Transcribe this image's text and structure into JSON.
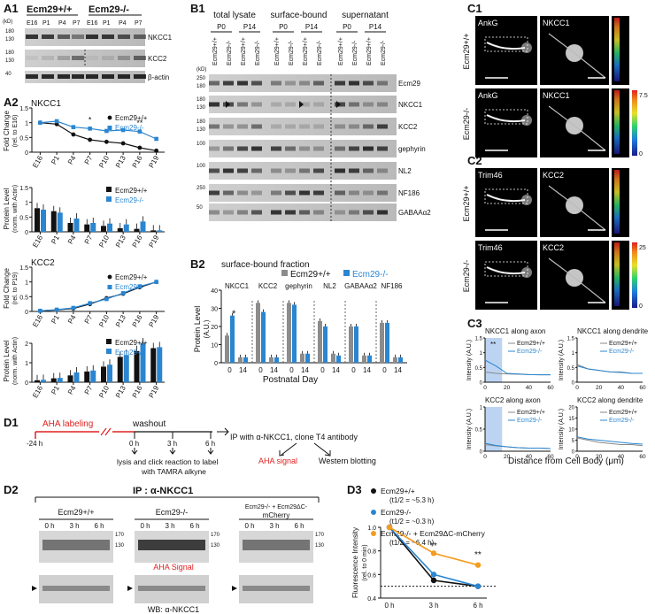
{
  "panel_labels": {
    "a1": "A1",
    "a2": "A2",
    "b1": "B1",
    "b2": "B2",
    "c1": "C1",
    "c2": "C2",
    "c3": "C3",
    "d1": "D1",
    "d2": "D2",
    "d3": "D3"
  },
  "a1": {
    "genotype_wt": "Ecm29+/+",
    "genotype_ko": "Ecm29-/-",
    "lanes": [
      "E16",
      "P1",
      "P4",
      "P7",
      "E16",
      "P1",
      "P4",
      "P7"
    ],
    "kd_label": "(kD)",
    "rows": [
      {
        "label": "NKCC1",
        "markers": [
          "180",
          "130"
        ]
      },
      {
        "label": "KCC2",
        "markers": [
          "180",
          "130"
        ]
      },
      {
        "label": "β-actin",
        "markers": [
          "40"
        ]
      }
    ]
  },
  "a2": {
    "nkcc1_title": "NKCC1",
    "kcc2_title": "KCC2",
    "xticks": [
      "E16",
      "P1",
      "P4",
      "P7",
      "P10",
      "P13",
      "P16",
      "P19"
    ],
    "fold_label": "Fold Change",
    "fold_sub_e16": "(rel. to E16)",
    "fold_sub_p19": "(rel. to P19)",
    "protein_label": "Protein Level",
    "protein_sub": "(norm. with Actin)",
    "legend_wt": "Ecm29+/+",
    "legend_ko": "Ecm29-/-",
    "star_single": "*",
    "star_double": "**"
  },
  "b1": {
    "groups": [
      "total lysate",
      "surface-bound",
      "supernatant"
    ],
    "ages": [
      "P0",
      "P14",
      "P0",
      "P14",
      "P0",
      "P14"
    ],
    "lane_labels": [
      "Ecm29+/+",
      "Ecm29-/-",
      "Ecm29+/+",
      "Ecm29-/-",
      "Ecm29+/+",
      "Ecm29-/-",
      "Ecm29+/+",
      "Ecm29-/-",
      "Ecm29+/+",
      "Ecm29-/-",
      "Ecm29+/+",
      "Ecm29-/-"
    ],
    "kd_label": "(kD)",
    "rows": [
      {
        "label": "Ecm29",
        "markers": [
          "250",
          "180"
        ]
      },
      {
        "label": "NKCC1",
        "markers": [
          "180",
          "130"
        ]
      },
      {
        "label": "KCC2",
        "markers": [
          "180",
          "130"
        ]
      },
      {
        "label": "gephyrin",
        "markers": [
          "100"
        ]
      },
      {
        "label": "NL2",
        "markers": [
          "100"
        ]
      },
      {
        "label": "NF186",
        "markers": [
          "250"
        ]
      },
      {
        "label": "GABAAα2",
        "markers": [
          "50"
        ]
      }
    ]
  },
  "b2": {
    "title": "surface-bound fraction",
    "legend_wt": "Ecm29+/+",
    "legend_ko": "Ecm29-/-",
    "color_wt": "#8c8c8c",
    "color_ko": "#2a86d1",
    "ylabel": "Protein Level",
    "ylabel_sub": "(A.U.)",
    "xlabel": "Postnatal Day",
    "star": "*"
  },
  "chart_data": [
    {
      "id": "A2-NKCC1-fold",
      "type": "line",
      "x": [
        "E16",
        "P1",
        "P4",
        "P7",
        "P10",
        "P13",
        "P16",
        "P19"
      ],
      "series": [
        {
          "name": "Ecm29+/+",
          "values": [
            1.0,
            0.95,
            0.6,
            0.42,
            0.35,
            0.3,
            0.15,
            0.05
          ]
        },
        {
          "name": "Ecm29-/-",
          "values": [
            1.0,
            1.05,
            0.85,
            0.8,
            0.72,
            0.75,
            0.7,
            0.45
          ]
        }
      ],
      "ylabel": "Fold Change (rel. to E16)",
      "ylim": [
        0,
        1.5
      ],
      "yticks": [
        0,
        0.5,
        1.0,
        1.5
      ]
    },
    {
      "id": "A2-NKCC1-protein",
      "type": "bar",
      "categories": [
        "E16",
        "P1",
        "P4",
        "P7",
        "P10",
        "P13",
        "P16",
        "P19"
      ],
      "series": [
        {
          "name": "Ecm29+/+",
          "values": [
            0.8,
            0.7,
            0.3,
            0.25,
            0.2,
            0.12,
            0.1,
            0.05
          ]
        },
        {
          "name": "Ecm29-/-",
          "values": [
            0.75,
            0.65,
            0.45,
            0.3,
            0.28,
            0.25,
            0.35,
            0.05
          ]
        }
      ],
      "ylabel": "Protein Level (norm. with Actin)",
      "ylim": [
        0,
        1.5
      ],
      "yticks": [
        0,
        0.5,
        1.0,
        1.5
      ]
    },
    {
      "id": "A2-KCC2-fold",
      "type": "line",
      "x": [
        "E16",
        "P1",
        "P4",
        "P7",
        "P10",
        "P13",
        "P16",
        "P19"
      ],
      "series": [
        {
          "name": "Ecm29+/+",
          "values": [
            0.02,
            0.05,
            0.1,
            0.25,
            0.45,
            0.6,
            0.82,
            1.0
          ]
        },
        {
          "name": "Ecm29-/-",
          "values": [
            0.02,
            0.06,
            0.12,
            0.28,
            0.42,
            0.62,
            0.85,
            1.0
          ]
        }
      ],
      "ylabel": "Fold Change (rel. to P19)",
      "ylim": [
        0,
        1.5
      ],
      "yticks": [
        0,
        0.5,
        1.0,
        1.5
      ]
    },
    {
      "id": "A2-KCC2-protein",
      "type": "bar",
      "categories": [
        "E16",
        "P1",
        "P4",
        "P7",
        "P10",
        "P13",
        "P16",
        "P19"
      ],
      "series": [
        {
          "name": "Ecm29+/+",
          "values": [
            0.1,
            0.2,
            0.35,
            0.55,
            0.8,
            1.3,
            1.6,
            1.75
          ]
        },
        {
          "name": "Ecm29-/-",
          "values": [
            0.12,
            0.22,
            0.5,
            0.6,
            0.9,
            1.4,
            2.0,
            1.8
          ]
        }
      ],
      "ylabel": "Protein Level (norm. with Actin)",
      "ylim": [
        0,
        2
      ],
      "yticks": [
        0,
        1,
        2
      ]
    },
    {
      "id": "B2",
      "type": "bar",
      "title": "surface-bound fraction",
      "groups": [
        "NKCC1",
        "KCC2",
        "gephyrin",
        "NL2",
        "GABAAα2",
        "NF186"
      ],
      "categories": [
        "0",
        "14"
      ],
      "series": [
        {
          "name": "Ecm29+/+",
          "values": [
            [
              15,
              3
            ],
            [
              33,
              3
            ],
            [
              33,
              5
            ],
            [
              23,
              5
            ],
            [
              20,
              4
            ],
            [
              22,
              3
            ]
          ]
        },
        {
          "name": "Ecm29-/-",
          "values": [
            [
              26,
              3
            ],
            [
              28,
              3
            ],
            [
              32,
              5
            ],
            [
              20,
              4
            ],
            [
              20,
              4
            ],
            [
              22,
              3
            ]
          ]
        }
      ],
      "ylabel": "Protein Level (A.U.)",
      "xlabel": "Postnatal Day",
      "ylim": [
        0,
        40
      ],
      "yticks": [
        0,
        10,
        20,
        30,
        40
      ]
    },
    {
      "id": "C3-NKCC1-axon",
      "type": "line",
      "title": "NKCC1 along axon",
      "x": [
        0,
        10,
        20,
        30,
        40,
        50,
        60
      ],
      "series": [
        {
          "name": "Ecm29+/+",
          "values": [
            0.35,
            0.3,
            0.28,
            0.27,
            0.26,
            0.25,
            0.25
          ]
        },
        {
          "name": "Ecm29-/-",
          "values": [
            0.75,
            0.55,
            0.3,
            0.28,
            0.26,
            0.25,
            0.25
          ]
        }
      ],
      "ylabel": "Intensity (A.U.)",
      "ylim": [
        0,
        1.5
      ],
      "yticks": [
        0,
        0.5,
        1.0,
        1.5
      ]
    },
    {
      "id": "C3-NKCC1-dendrite",
      "type": "line",
      "title": "NKCC1 along dendrite",
      "x": [
        0,
        10,
        20,
        30,
        40,
        50,
        60
      ],
      "series": [
        {
          "name": "Ecm29+/+",
          "values": [
            0.6,
            0.45,
            0.4,
            0.35,
            0.35,
            0.3,
            0.3
          ]
        },
        {
          "name": "Ecm29-/-",
          "values": [
            0.55,
            0.45,
            0.4,
            0.35,
            0.33,
            0.3,
            0.3
          ]
        }
      ],
      "ylabel": "Intensity (A.U.)",
      "ylim": [
        0,
        1.5
      ],
      "yticks": [
        0,
        0.5,
        1.0,
        1.5
      ]
    },
    {
      "id": "C3-KCC2-axon",
      "type": "line",
      "title": "KCC2 along axon",
      "x": [
        0,
        10,
        20,
        30,
        40,
        50,
        60
      ],
      "series": [
        {
          "name": "Ecm29+/+",
          "values": [
            0.15,
            0.12,
            0.1,
            0.08,
            0.07,
            0.07,
            0.06
          ]
        },
        {
          "name": "Ecm29-/-",
          "values": [
            0.18,
            0.13,
            0.1,
            0.08,
            0.07,
            0.07,
            0.06
          ]
        }
      ],
      "ylabel": "Intensity (A.U.)",
      "ylim": [
        0,
        1.0
      ],
      "yticks": [
        0,
        0.5,
        1.0
      ]
    },
    {
      "id": "C3-KCC2-dendrite",
      "type": "line",
      "title": "KCC2 along dendrite",
      "x": [
        0,
        10,
        20,
        30,
        40,
        50,
        60
      ],
      "series": [
        {
          "name": "Ecm29+/+",
          "values": [
            6,
            5,
            4,
            3.5,
            3,
            3,
            2.5
          ]
        },
        {
          "name": "Ecm29-/-",
          "values": [
            6.5,
            5.5,
            5,
            4.5,
            4,
            3.5,
            3.2
          ]
        }
      ],
      "ylabel": "Intensity (A.U.)",
      "ylim": [
        0,
        20
      ],
      "yticks": [
        0,
        5,
        10,
        15,
        20
      ]
    },
    {
      "id": "D3",
      "type": "line",
      "x": [
        "0 h",
        "3 h",
        "6 h"
      ],
      "series": [
        {
          "name": "Ecm29+/+ (t1/2 = ~5.3 h)",
          "values": [
            1.0,
            0.55,
            0.5
          ]
        },
        {
          "name": "Ecm29-/- (t1/2 = ~0.3 h)",
          "values": [
            1.0,
            0.6,
            0.5
          ]
        },
        {
          "name": "Ecm29-/- + Ecm29ΔC-mCherry (t1/2 = ~6.4 h)",
          "values": [
            1.0,
            0.78,
            0.68
          ]
        }
      ],
      "ylabel": "Fluorescence Intensity (rel. to 0 min)",
      "ylim": [
        0.4,
        1.0
      ],
      "yticks": [
        0.4,
        0.6,
        0.8,
        1.0
      ],
      "reference_line": 0.5
    }
  ],
  "c1": {
    "stain_left": "AnkG",
    "stain_right": "NKCC1",
    "row_wt": "Ecm29+/+",
    "row_ko": "Ecm29-/-",
    "scale_max": "7.5",
    "scale_min": "0"
  },
  "c2": {
    "stain_left": "Trim46",
    "stain_right": "KCC2",
    "row_wt": "Ecm29+/+",
    "row_ko": "Ecm29-/-",
    "scale_max": "25",
    "scale_min": "0"
  },
  "c3": {
    "titles": [
      "NKCC1 along axon",
      "NKCC1 along dendrite",
      "KCC2 along axon",
      "KCC2 along dendrite"
    ],
    "legend_wt": "Ecm29+/+",
    "legend_ko": "Ecm29-/-",
    "ylabel": "Intensity (A.U.)",
    "xlabel": "Distance from Cell Body (μm)",
    "xticks": [
      "0",
      "20",
      "40",
      "60"
    ],
    "star_double": "**"
  },
  "d1": {
    "aha": "AHA labeling",
    "washout": "washout",
    "t_minus": "-24 h",
    "t0": "0 h",
    "t3": "3 h",
    "t6": "6 h",
    "lysis": "lysis and click reaction to label",
    "lysis2": "with TAMRA alkyne",
    "ip": "IP with α-NKCC1, clone T4 antibody",
    "aha_signal": "AHA signal",
    "western": "Western blotting"
  },
  "d2": {
    "title": "IP : α-NKCC1",
    "group_wt": "Ecm29+/+",
    "group_ko": "Ecm29-/-",
    "group_rescue_1": "Ecm29-/- + Ecm29ΔC-",
    "group_rescue_2": "mCherry",
    "times": [
      "0 h",
      "3 h",
      "6 h"
    ],
    "markers_top": [
      "170",
      "130"
    ],
    "markers_bottom": [
      "170",
      "130"
    ],
    "aha_signal": "AHA Signal",
    "wb": "WB: α-NKCC1"
  },
  "d3": {
    "legend": [
      {
        "name": "Ecm29+/+",
        "half": "(t1/2 = ~5.3 h)",
        "color": "#111111"
      },
      {
        "name": "Ecm29-/-",
        "half": "(t1/2 = ~0.3 h)",
        "color": "#2a86d1"
      },
      {
        "name": "Ecm29-/- + Ecm29ΔC-mCherry",
        "half": "(t1/2 = ~6.4 h)",
        "color": "#f39c1f"
      }
    ],
    "ylabel": "Fluorescence Intensity",
    "ylabel_sub": "(rel. to 0 min)",
    "star_double": "**"
  },
  "colors": {
    "wt": "#111111",
    "ko": "#2a86d1",
    "rescue": "#f39c1f",
    "highlight": "#bcd4f2",
    "red": "#e02020"
  }
}
